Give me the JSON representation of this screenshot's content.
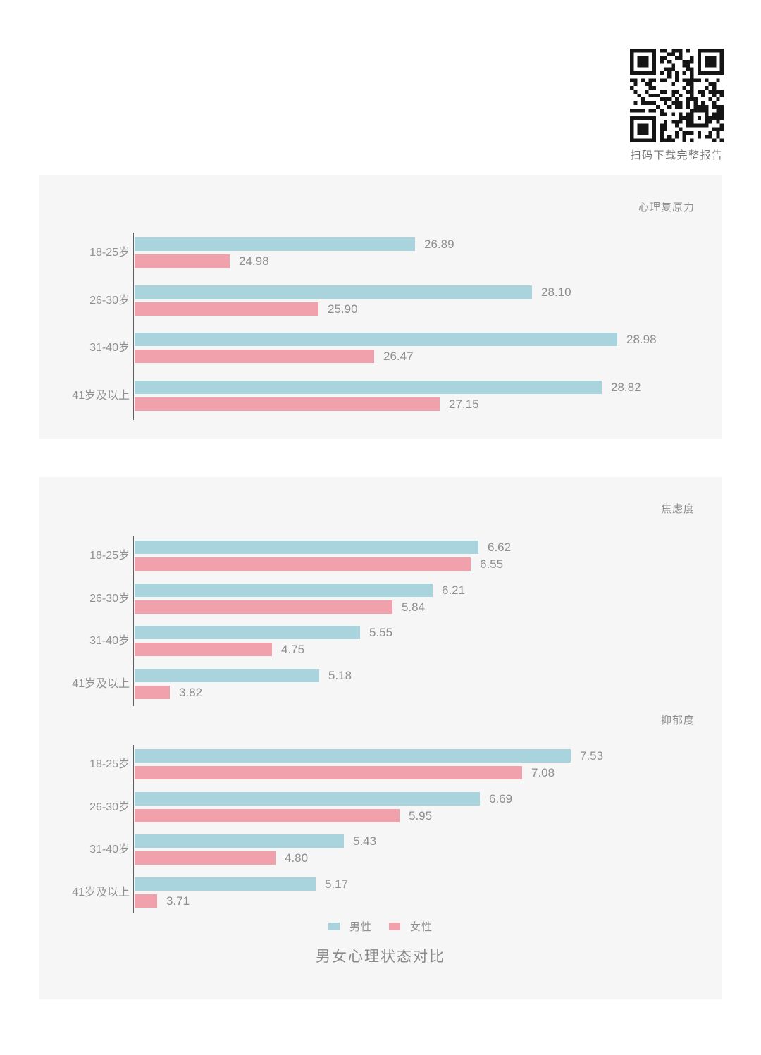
{
  "qr": {
    "caption": "扫码下载完整报告"
  },
  "main_title": "男女心理状态对比",
  "legend": {
    "position": "bottom",
    "items": [
      {
        "label": "男性",
        "color": "#a9d4dd"
      },
      {
        "label": "女性",
        "color": "#f0a1ab"
      }
    ]
  },
  "colors": {
    "male": "#a9d4dd",
    "female": "#f0a1ab",
    "panel_bg": "#f6f6f6",
    "text_gray": "#8e8e8e"
  },
  "chart_data": [
    {
      "type": "bar",
      "orientation": "horizontal",
      "title": "心理复原力",
      "categories": [
        "18-25岁",
        "26-30岁",
        "31-40岁",
        "41岁及以上"
      ],
      "series": [
        {
          "name": "男性",
          "color": "#a9d4dd",
          "values": [
            "26.89",
            "28.10",
            "28.98",
            "28.82"
          ]
        },
        {
          "name": "女性",
          "color": "#f0a1ab",
          "values": [
            "24.98",
            "25.90",
            "26.47",
            "27.15"
          ]
        }
      ],
      "xlim": [
        24,
        29
      ],
      "grid": false,
      "value_labels": true,
      "legend_position": "bottom"
    },
    {
      "type": "bar",
      "orientation": "horizontal",
      "title": "焦虑度",
      "categories": [
        "18-25岁",
        "26-30岁",
        "31-40岁",
        "41岁及以上"
      ],
      "series": [
        {
          "name": "男性",
          "color": "#a9d4dd",
          "values": [
            "6.62",
            "6.21",
            "5.55",
            "5.18"
          ]
        },
        {
          "name": "女性",
          "color": "#f0a1ab",
          "values": [
            "6.55",
            "5.84",
            "4.75",
            "3.82"
          ]
        }
      ],
      "xlim": [
        3.5,
        6.7
      ],
      "grid": false,
      "value_labels": true,
      "legend_position": "bottom"
    },
    {
      "type": "bar",
      "orientation": "horizontal",
      "title": "抑郁度",
      "categories": [
        "18-25岁",
        "26-30岁",
        "31-40岁",
        "41岁及以上"
      ],
      "series": [
        {
          "name": "男性",
          "color": "#a9d4dd",
          "values": [
            "7.53",
            "6.69",
            "5.43",
            "5.17"
          ]
        },
        {
          "name": "女性",
          "color": "#f0a1ab",
          "values": [
            "7.08",
            "5.95",
            "4.80",
            "3.71"
          ]
        }
      ],
      "xlim": [
        3.5,
        7.6
      ],
      "grid": false,
      "value_labels": true,
      "legend_position": "bottom"
    }
  ]
}
